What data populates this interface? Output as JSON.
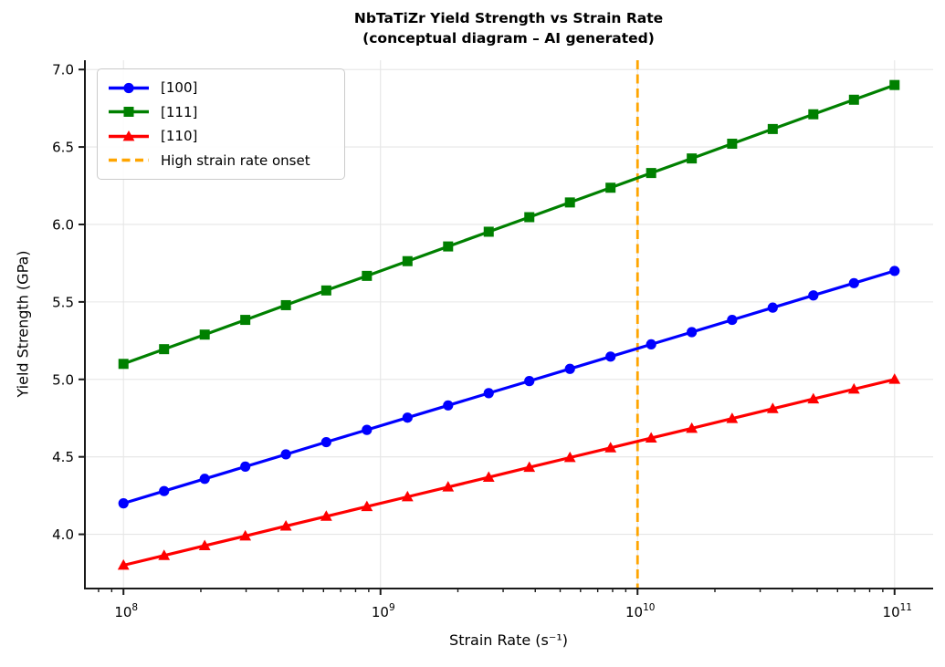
{
  "chart_data": {
    "type": "line",
    "title": "NbTaTiZr Yield Strength vs Strain Rate",
    "subtitle": "(conceptual diagram – AI generated)",
    "xlabel": "Strain Rate (s⁻¹)",
    "ylabel": "Yield Strength (GPa)",
    "x_scale": "log",
    "grid": true,
    "legend_position": "upper-left",
    "xlim_log10": [
      7.85,
      11.15
    ],
    "ylim": [
      3.65,
      7.06
    ],
    "x_tick_exponents": [
      8,
      9,
      10,
      11
    ],
    "y_ticks": [
      4.0,
      4.5,
      5.0,
      5.5,
      6.0,
      6.5,
      7.0
    ],
    "x_log10": [
      8.0,
      8.158,
      8.316,
      8.474,
      8.632,
      8.789,
      8.947,
      9.105,
      9.263,
      9.421,
      9.579,
      9.737,
      9.895,
      10.053,
      10.211,
      10.368,
      10.526,
      10.684,
      10.842,
      11.0
    ],
    "series": [
      {
        "name": "[100]",
        "color": "#0000ff",
        "marker": "circle",
        "values": [
          4.2,
          4.279,
          4.358,
          4.437,
          4.516,
          4.595,
          4.674,
          4.753,
          4.832,
          4.911,
          4.989,
          5.068,
          5.147,
          5.226,
          5.305,
          5.384,
          5.463,
          5.542,
          5.621,
          5.7
        ]
      },
      {
        "name": "[111]",
        "color": "#008000",
        "marker": "square",
        "values": [
          5.1,
          5.195,
          5.289,
          5.384,
          5.479,
          5.574,
          5.668,
          5.763,
          5.858,
          5.953,
          6.047,
          6.142,
          6.237,
          6.332,
          6.426,
          6.521,
          6.616,
          6.711,
          6.805,
          6.9
        ]
      },
      {
        "name": "[110]",
        "color": "#ff0000",
        "marker": "triangle-up",
        "values": [
          3.8,
          3.863,
          3.926,
          3.989,
          4.053,
          4.116,
          4.179,
          4.242,
          4.305,
          4.368,
          4.432,
          4.495,
          4.558,
          4.621,
          4.684,
          4.747,
          4.811,
          4.874,
          4.937,
          5.0
        ]
      }
    ],
    "vline": {
      "label": "High strain rate onset",
      "x_log10": 10,
      "color": "#ffa500",
      "style": "dashed"
    },
    "style": {
      "grid_color": "#e6e6e6",
      "spine_color": "#1a1a1a",
      "text_color": "#000000",
      "background": "#ffffff"
    }
  }
}
